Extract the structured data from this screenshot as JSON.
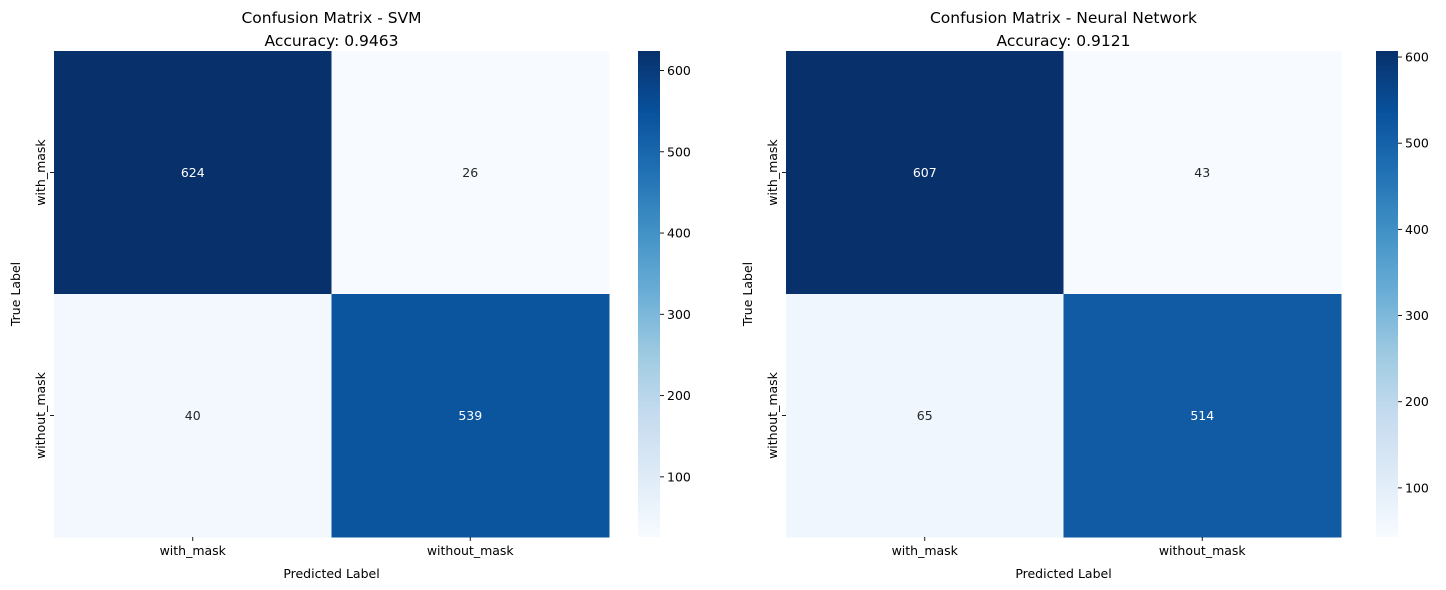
{
  "chart_data": [
    {
      "type": "heatmap",
      "title": "Confusion Matrix - SVM",
      "subtitle": "Accuracy: 0.9463",
      "xlabel": "Predicted Label",
      "ylabel": "True Label",
      "x_categories": [
        "with_mask",
        "without_mask"
      ],
      "y_categories": [
        "with_mask",
        "without_mask"
      ],
      "values": [
        [
          624,
          26
        ],
        [
          40,
          539
        ]
      ],
      "colormap": "Blues",
      "colorbar": {
        "range": [
          26,
          624
        ],
        "ticks": [
          100,
          200,
          300,
          400,
          500,
          600
        ]
      },
      "grid": false
    },
    {
      "type": "heatmap",
      "title": "Confusion Matrix - Neural Network",
      "subtitle": "Accuracy: 0.9121",
      "xlabel": "Predicted Label",
      "ylabel": "True Label",
      "x_categories": [
        "with_mask",
        "without_mask"
      ],
      "y_categories": [
        "with_mask",
        "without_mask"
      ],
      "values": [
        [
          607,
          43
        ],
        [
          65,
          514
        ]
      ],
      "colormap": "Blues",
      "colorbar": {
        "range": [
          43,
          607
        ],
        "ticks": [
          100,
          200,
          300,
          400,
          500,
          600
        ]
      },
      "grid": false
    }
  ]
}
